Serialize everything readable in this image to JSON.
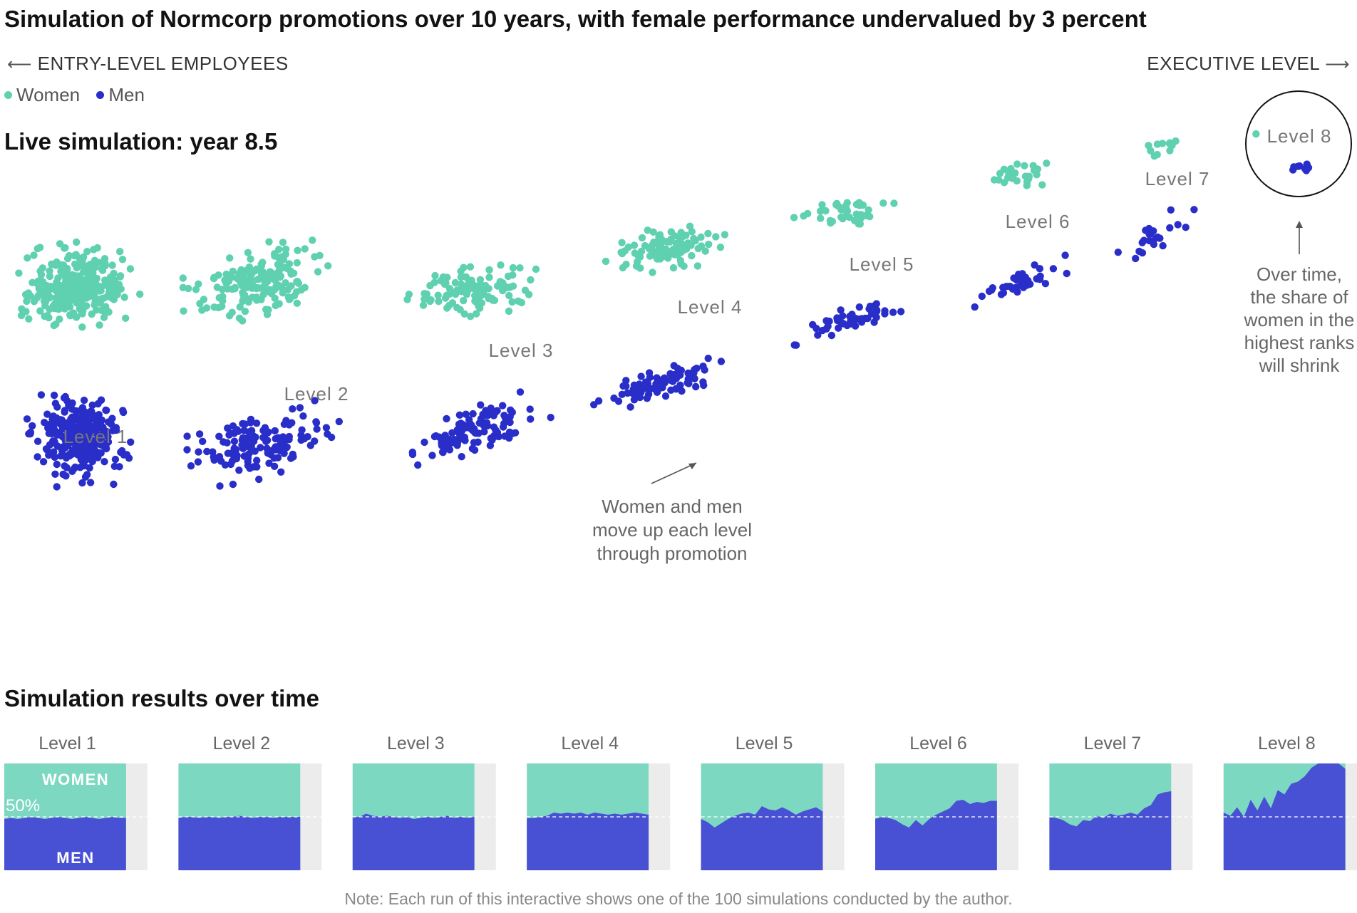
{
  "title": "Simulation of Normcorp promotions over 10 years, with female performance undervalued by 3 percent",
  "direction": {
    "left": "ENTRY-LEVEL EMPLOYEES",
    "right": "EXECUTIVE LEVEL",
    "left_arrow": "⟵",
    "right_arrow": "⟶"
  },
  "legend": {
    "women": "Women",
    "men": "Men"
  },
  "colors": {
    "women": "#5fd1b0",
    "men": "#2a2ec9",
    "women_area": "#7dd8c2",
    "men_area": "#4850d3",
    "future": "#ececec"
  },
  "live_label": "Live simulation: year 8.5",
  "annotations": {
    "move_up": [
      "Women and men",
      "move up each level",
      "through promotion"
    ],
    "over_time": [
      "Over time,",
      "the share of",
      "women in the",
      "highest ranks",
      "will shrink"
    ]
  },
  "results_title": "Simulation results over time",
  "note": "Note: Each run of this interactive shows one of the 100 simulations conducted by the author.",
  "chart_data": [
    {
      "type": "scatter",
      "title": "Live simulation: year 8.5",
      "description_units": "dot counts per level (approximate, read from the picture)",
      "levels": [
        {
          "label": "Level 1",
          "women": 300,
          "men": 300
        },
        {
          "label": "Level 2",
          "women": 170,
          "men": 140
        },
        {
          "label": "Level 3",
          "women": 115,
          "men": 105
        },
        {
          "label": "Level 4",
          "women": 100,
          "men": 85
        },
        {
          "label": "Level 5",
          "women": 42,
          "men": 48
        },
        {
          "label": "Level 6",
          "women": 26,
          "men": 38
        },
        {
          "label": "Level 7",
          "women": 12,
          "men": 22
        },
        {
          "label": "Level 8",
          "women": 1,
          "men": 8
        }
      ]
    },
    {
      "type": "area",
      "title": "Simulation results over time",
      "labels": {
        "women": "WOMEN",
        "men": "MEN",
        "reference": "50%"
      },
      "y_meaning": "share of men at each level, percent",
      "ylim": [
        0,
        100
      ],
      "x_meaning": "simulation time steps (year 0 to 10); current year 8.5",
      "years_total": 10,
      "current_year": 8.5,
      "series": [
        {
          "name": "Level 1",
          "men_share": [
            48,
            49,
            48,
            49,
            50,
            49,
            48,
            49,
            50,
            49,
            48,
            49,
            50,
            49,
            48,
            49,
            50,
            49,
            49
          ]
        },
        {
          "name": "Level 2",
          "men_share": [
            49,
            50,
            50,
            49,
            50,
            50,
            49,
            50,
            50,
            51,
            50,
            49,
            50,
            50,
            49,
            50,
            50,
            50,
            50
          ]
        },
        {
          "name": "Level 3",
          "men_share": [
            50,
            50,
            53,
            51,
            50,
            51,
            50,
            49,
            50,
            48,
            49,
            50,
            49,
            50,
            51,
            49,
            50,
            49,
            50
          ]
        },
        {
          "name": "Level 4",
          "men_share": [
            49,
            49,
            50,
            51,
            54,
            53,
            54,
            53,
            54,
            52,
            54,
            53,
            52,
            53,
            52,
            53,
            54,
            53,
            52
          ]
        },
        {
          "name": "Level 5",
          "men_share": [
            48,
            45,
            40,
            44,
            48,
            51,
            53,
            54,
            52,
            60,
            57,
            56,
            59,
            56,
            52,
            55,
            57,
            59,
            55
          ]
        },
        {
          "name": "Level 6",
          "men_share": [
            48,
            50,
            49,
            47,
            43,
            40,
            47,
            42,
            48,
            52,
            55,
            58,
            65,
            66,
            62,
            64,
            63,
            65,
            65
          ]
        },
        {
          "name": "Level 7",
          "men_share": [
            50,
            49,
            47,
            43,
            41,
            47,
            46,
            51,
            49,
            53,
            51,
            52,
            54,
            52,
            58,
            61,
            71,
            73,
            74
          ]
        },
        {
          "name": "Level 8",
          "men_share": [
            54,
            51,
            59,
            50,
            66,
            56,
            69,
            58,
            75,
            71,
            81,
            83,
            88,
            96,
            100,
            100,
            100,
            100,
            95
          ]
        }
      ]
    }
  ]
}
